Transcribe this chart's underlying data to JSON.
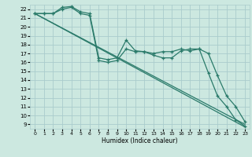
{
  "xlabel": "Humidex (Indice chaleur)",
  "bg_color": "#cce8e0",
  "grid_color": "#aacccc",
  "line_color": "#2a7a6a",
  "xlim": [
    -0.5,
    23.5
  ],
  "ylim": [
    8.5,
    22.5
  ],
  "xticks": [
    0,
    1,
    2,
    3,
    4,
    5,
    6,
    7,
    8,
    9,
    10,
    11,
    12,
    13,
    14,
    15,
    16,
    17,
    18,
    19,
    20,
    21,
    22,
    23
  ],
  "yticks": [
    9,
    10,
    11,
    12,
    13,
    14,
    15,
    16,
    17,
    18,
    19,
    20,
    21,
    22
  ],
  "diag1": {
    "x": [
      0,
      23
    ],
    "y": [
      21.5,
      9.0
    ]
  },
  "diag2": {
    "x": [
      0,
      23
    ],
    "y": [
      21.5,
      8.7
    ]
  },
  "line3_x": [
    0,
    1,
    2,
    3,
    4,
    5,
    6,
    7,
    8,
    9,
    10,
    11,
    12,
    13,
    14,
    15,
    16,
    17,
    18,
    19,
    20,
    21,
    22,
    23
  ],
  "line3_y": [
    21.5,
    21.5,
    21.5,
    22.2,
    22.3,
    21.7,
    21.5,
    16.5,
    16.3,
    16.5,
    18.5,
    17.3,
    17.2,
    17.0,
    17.2,
    17.2,
    17.5,
    17.3,
    17.5,
    17.0,
    14.5,
    12.2,
    11.0,
    9.3
  ],
  "line4_x": [
    0,
    1,
    2,
    3,
    4,
    5,
    6,
    7,
    8,
    9,
    10,
    11,
    12,
    13,
    14,
    15,
    16,
    17,
    18,
    19,
    20,
    21,
    22,
    23
  ],
  "line4_y": [
    21.5,
    21.5,
    21.5,
    22.0,
    22.2,
    21.5,
    21.3,
    16.2,
    16.0,
    16.2,
    17.5,
    17.2,
    17.2,
    16.8,
    16.5,
    16.5,
    17.3,
    17.5,
    17.5,
    14.8,
    12.2,
    11.0,
    9.5,
    8.8
  ]
}
